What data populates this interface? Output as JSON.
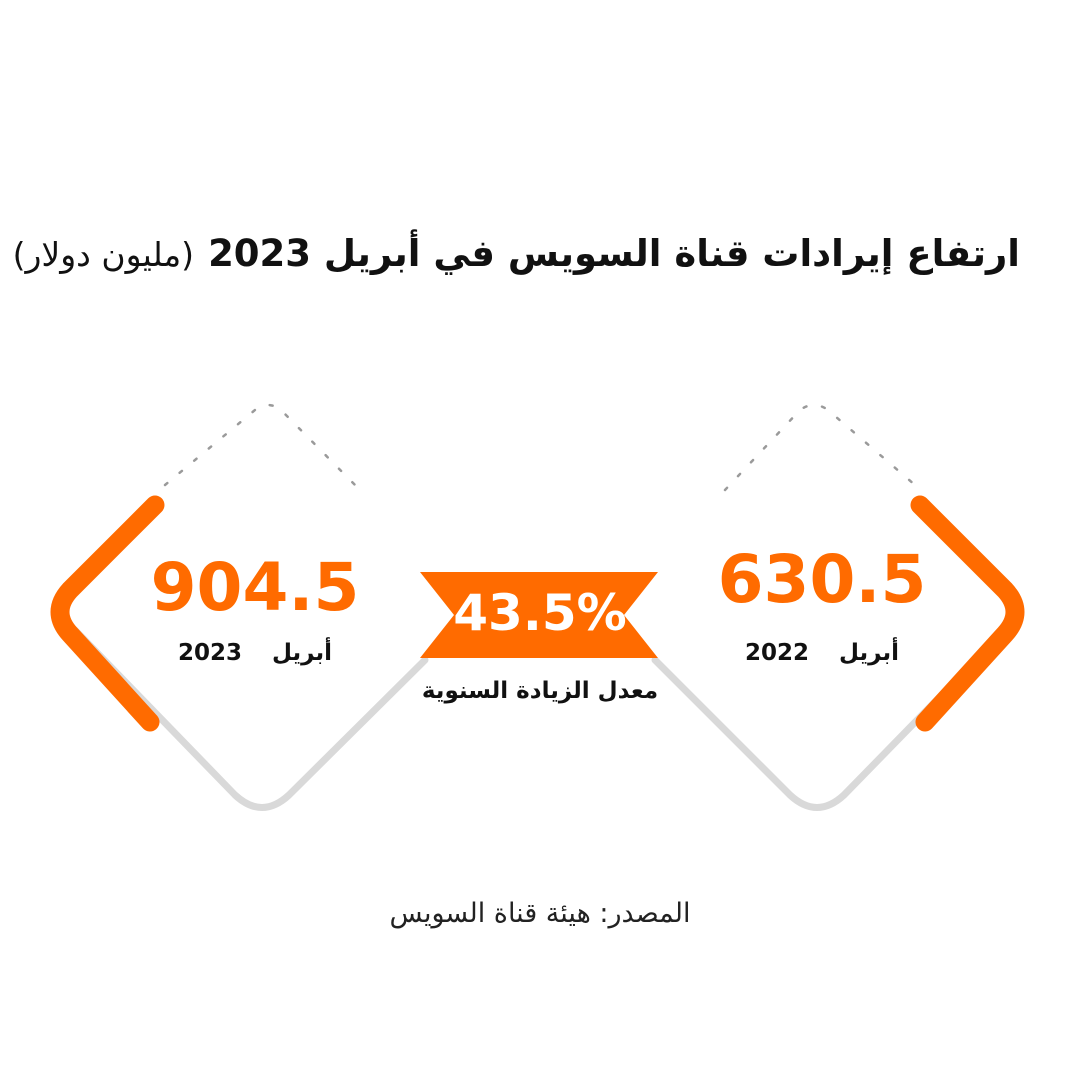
{
  "header": {
    "title": "ارتفاع إيرادات قناة السويس في أبريل 2023",
    "unit": "(مليون دولار)"
  },
  "colors": {
    "accent": "#ff6b00",
    "text": "#111111",
    "shadow": "#d9d9d9"
  },
  "cards": [
    {
      "id": "april-2023",
      "value": "904.5",
      "month": "أبريل",
      "year": "2023"
    },
    {
      "id": "april-2022",
      "value": "630.5",
      "month": "أبريل",
      "year": "2022"
    }
  ],
  "growth": {
    "value": "43.5%",
    "label": "معدل الزيادة السنوية"
  },
  "footer": {
    "source": "المصدر: هيئة قناة السويس"
  }
}
